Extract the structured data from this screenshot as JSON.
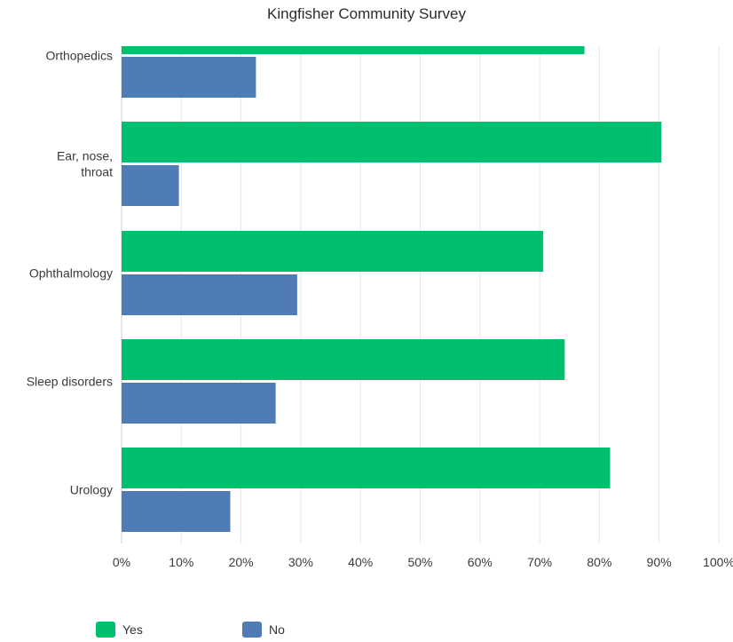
{
  "chart_data": {
    "type": "bar",
    "orientation": "horizontal",
    "title": "Kingfisher Community Survey",
    "categories": [
      "Orthopedics",
      "Ear, nose, throat",
      "Ophthalmology",
      "Sleep disorders",
      "Urology"
    ],
    "category_label_lines": [
      [
        "Orthopedics"
      ],
      [
        "Ear, nose,",
        "throat"
      ],
      [
        "Ophthalmology"
      ],
      [
        "Sleep disorders"
      ],
      [
        "Urology"
      ]
    ],
    "series": [
      {
        "name": "Yes",
        "color": "#00bf6f",
        "values": [
          77.5,
          90.4,
          70.6,
          74.2,
          81.8
        ]
      },
      {
        "name": "No",
        "color": "#507cb6",
        "values": [
          22.5,
          9.6,
          29.4,
          25.8,
          18.2
        ]
      }
    ],
    "xlim": [
      0,
      100
    ],
    "x_ticks": [
      "0%",
      "10%",
      "20%",
      "30%",
      "40%",
      "50%",
      "60%",
      "70%",
      "80%",
      "90%",
      "100%"
    ],
    "grid": true,
    "legend_position": "bottom-left"
  }
}
